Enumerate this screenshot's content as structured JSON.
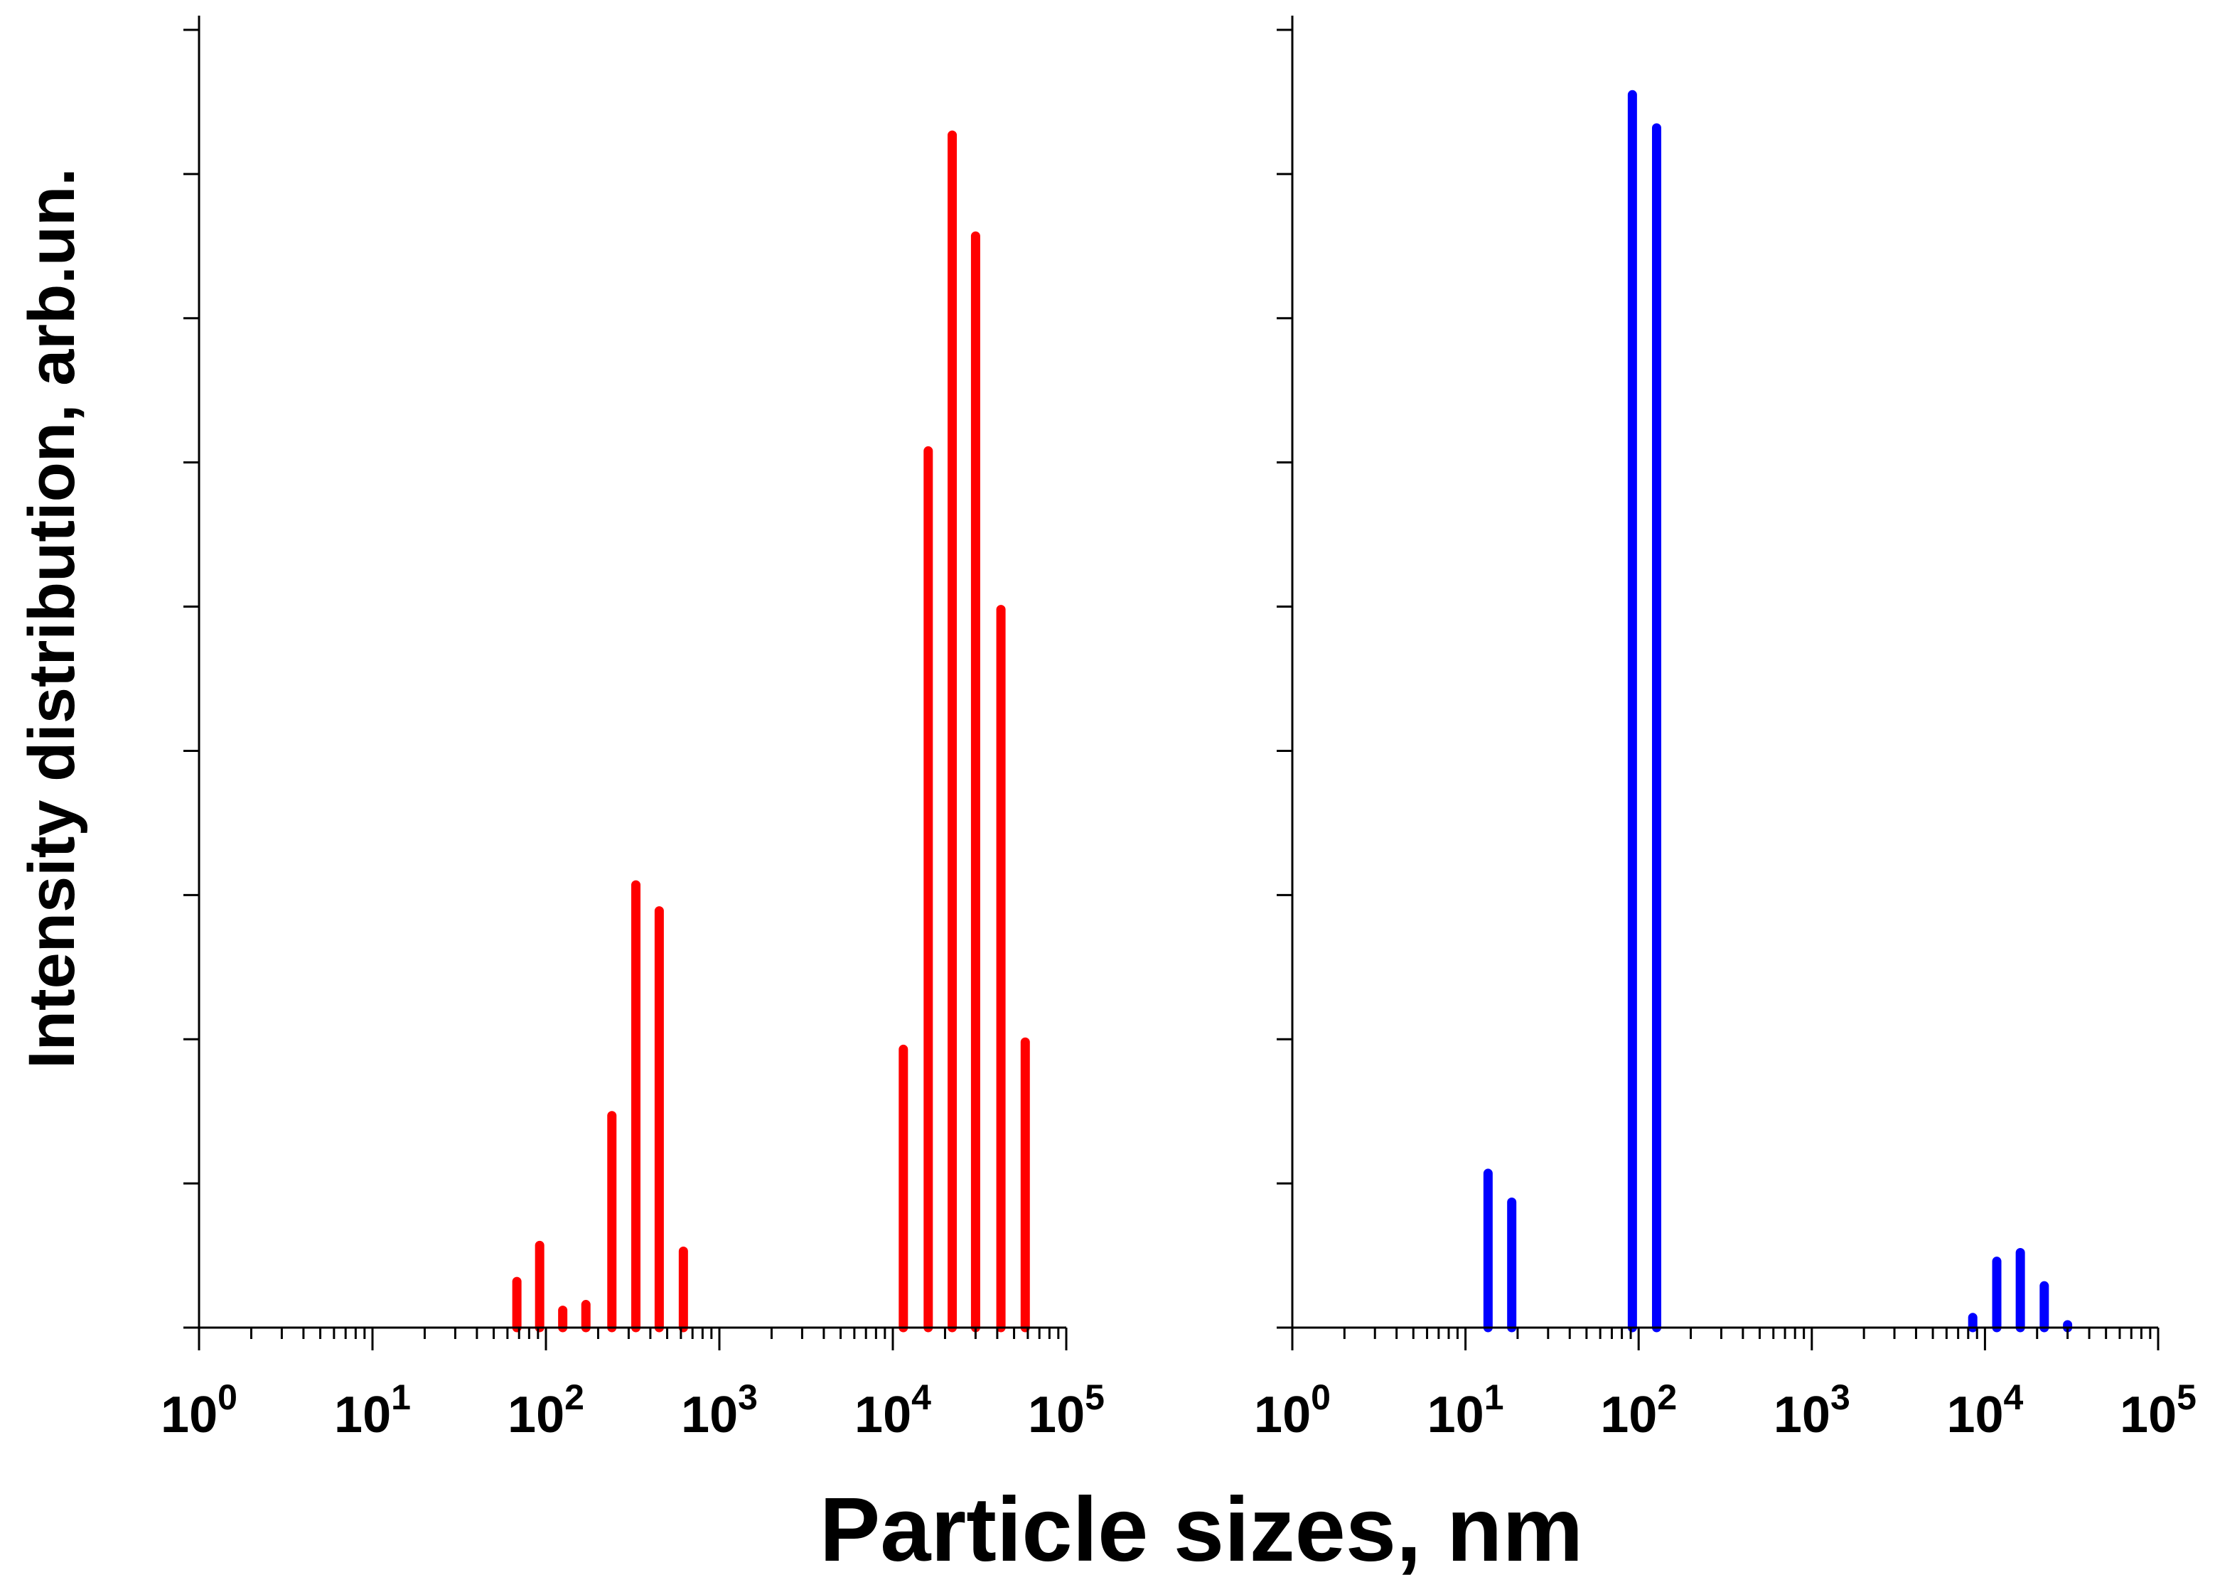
{
  "xlabel": "Particle sizes, nm",
  "ylabel": "Intensity distribution, arb.un.",
  "colors": {
    "left": "#ff0000",
    "right": "#0000ff",
    "axis": "#000000"
  },
  "chart_data": [
    {
      "type": "bar",
      "panel": "left",
      "title": "",
      "xlabel": "Particle sizes, nm",
      "ylabel": "Intensity distribution, arb.un.",
      "xscale": "log",
      "xlim": [
        1,
        100000
      ],
      "ylim": [
        0,
        9
      ],
      "xticks": [
        1,
        10,
        100,
        1000,
        10000,
        100000
      ],
      "xtick_labels": [
        {
          "base": "10",
          "exp": "0"
        },
        {
          "base": "10",
          "exp": "1"
        },
        {
          "base": "10",
          "exp": "2"
        },
        {
          "base": "10",
          "exp": "3"
        },
        {
          "base": "10",
          "exp": "4"
        },
        {
          "base": "10",
          "exp": "5"
        }
      ],
      "yticks": [
        0,
        1,
        2,
        3,
        4,
        5,
        6,
        7,
        8,
        9
      ],
      "x": [
        68,
        92,
        125,
        170,
        240,
        330,
        450,
        620,
        11500,
        16000,
        22000,
        30000,
        42000,
        58000
      ],
      "values": [
        0.32,
        0.57,
        0.12,
        0.16,
        1.47,
        3.07,
        2.89,
        0.53,
        1.93,
        6.08,
        8.27,
        7.57,
        4.98,
        1.98
      ]
    },
    {
      "type": "bar",
      "panel": "right",
      "title": "",
      "xlabel": "Particle sizes, nm",
      "ylabel": "",
      "xscale": "log",
      "xlim": [
        1,
        100000
      ],
      "ylim": [
        0,
        9
      ],
      "xticks": [
        1,
        10,
        100,
        1000,
        10000,
        100000
      ],
      "xtick_labels": [
        {
          "base": "10",
          "exp": "0"
        },
        {
          "base": "10",
          "exp": "1"
        },
        {
          "base": "10",
          "exp": "2"
        },
        {
          "base": "10",
          "exp": "3"
        },
        {
          "base": "10",
          "exp": "4"
        },
        {
          "base": "10",
          "exp": "5"
        }
      ],
      "yticks": [
        0,
        1,
        2,
        3,
        4,
        5,
        6,
        7,
        8,
        9
      ],
      "x": [
        13.5,
        18.5,
        92,
        127,
        8500,
        11700,
        16000,
        22000,
        30000
      ],
      "values": [
        1.07,
        0.87,
        8.55,
        8.32,
        0.07,
        0.46,
        0.52,
        0.29,
        0.02
      ]
    }
  ]
}
